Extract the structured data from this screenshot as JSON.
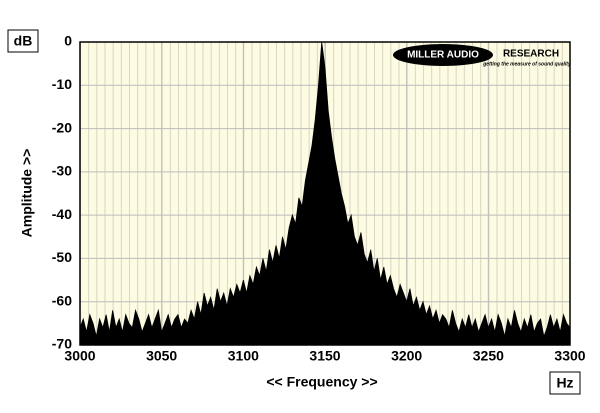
{
  "chart_data": {
    "type": "area",
    "y_unit": "dB",
    "x_unit": "Hz",
    "ylabel": "Amplitude >>",
    "xlabel": "<< Frequency >>",
    "xlim": [
      3000,
      3300
    ],
    "xticks": [
      3000,
      3050,
      3100,
      3150,
      3200,
      3250,
      3300
    ],
    "ylim": [
      -70,
      0
    ],
    "yticks": [
      0,
      -10,
      -20,
      -30,
      -40,
      -50,
      -60,
      -70
    ],
    "grid": true,
    "color": "#000000",
    "x": [
      3000,
      3002,
      3004,
      3006,
      3008,
      3010,
      3012,
      3014,
      3016,
      3018,
      3020,
      3022,
      3024,
      3026,
      3028,
      3030,
      3032,
      3034,
      3036,
      3038,
      3040,
      3042,
      3044,
      3046,
      3048,
      3050,
      3052,
      3054,
      3056,
      3058,
      3060,
      3062,
      3064,
      3066,
      3068,
      3070,
      3072,
      3074,
      3076,
      3078,
      3080,
      3082,
      3084,
      3086,
      3088,
      3090,
      3092,
      3094,
      3096,
      3098,
      3100,
      3102,
      3104,
      3106,
      3108,
      3110,
      3112,
      3114,
      3116,
      3118,
      3120,
      3122,
      3124,
      3126,
      3128,
      3130,
      3132,
      3134,
      3136,
      3138,
      3140,
      3142,
      3144,
      3146,
      3148,
      3150,
      3152,
      3154,
      3156,
      3158,
      3160,
      3162,
      3164,
      3166,
      3168,
      3170,
      3172,
      3174,
      3176,
      3178,
      3180,
      3182,
      3184,
      3186,
      3188,
      3190,
      3192,
      3194,
      3196,
      3198,
      3200,
      3202,
      3204,
      3206,
      3208,
      3210,
      3212,
      3214,
      3216,
      3218,
      3220,
      3222,
      3224,
      3226,
      3228,
      3230,
      3232,
      3234,
      3236,
      3238,
      3240,
      3242,
      3244,
      3246,
      3248,
      3250,
      3252,
      3254,
      3256,
      3258,
      3260,
      3262,
      3264,
      3266,
      3268,
      3270,
      3272,
      3274,
      3276,
      3278,
      3280,
      3282,
      3284,
      3286,
      3288,
      3290,
      3292,
      3294,
      3296,
      3298,
      3300
    ],
    "values": [
      -66,
      -64,
      -67,
      -63,
      -65,
      -68,
      -64,
      -66,
      -63,
      -67,
      -62,
      -66,
      -64,
      -67,
      -63,
      -65,
      -66,
      -62,
      -64,
      -67,
      -65,
      -63,
      -66,
      -64,
      -62,
      -67,
      -65,
      -63,
      -66,
      -64,
      -63,
      -66,
      -64,
      -65,
      -62,
      -64,
      -60,
      -63,
      -58,
      -61,
      -59,
      -62,
      -57,
      -60,
      -58,
      -61,
      -57,
      -59,
      -56,
      -58,
      -55,
      -58,
      -54,
      -56,
      -52,
      -54,
      -50,
      -53,
      -48,
      -51,
      -47,
      -50,
      -45,
      -48,
      -43,
      -40,
      -42,
      -36,
      -38,
      -32,
      -28,
      -24,
      -18,
      -10,
      0,
      -6,
      -16,
      -22,
      -27,
      -31,
      -35,
      -38,
      -42,
      -40,
      -45,
      -47,
      -44,
      -49,
      -51,
      -48,
      -53,
      -50,
      -55,
      -52,
      -56,
      -54,
      -57,
      -59,
      -56,
      -58,
      -60,
      -57,
      -61,
      -59,
      -62,
      -60,
      -63,
      -61,
      -64,
      -62,
      -65,
      -63,
      -64,
      -66,
      -62,
      -65,
      -67,
      -64,
      -66,
      -63,
      -66,
      -64,
      -67,
      -65,
      -63,
      -66,
      -64,
      -67,
      -63,
      -65,
      -68,
      -64,
      -66,
      -62,
      -65,
      -67,
      -64,
      -66,
      -63,
      -67,
      -65,
      -64,
      -68,
      -66,
      -63,
      -66,
      -64,
      -67,
      -63,
      -65,
      -66
    ]
  },
  "logo": {
    "name": "MILLER AUDIO",
    "name2": "RESEARCH",
    "tagline": "getting the measure of sound quality"
  }
}
